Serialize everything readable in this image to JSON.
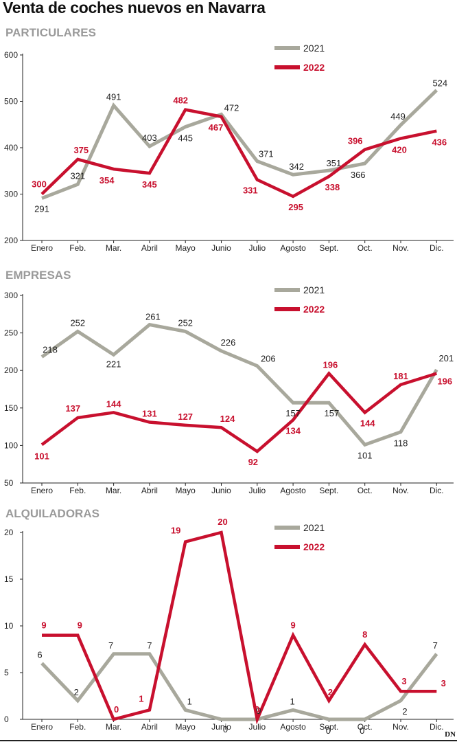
{
  "title": "Venta de coches nuevos en Navarra",
  "logo": "DN",
  "colors": {
    "y2021": "#a8a89c",
    "y2022": "#c8102e",
    "axis": "#222222"
  },
  "chart_data": [
    {
      "type": "line",
      "title": "PARTICULARES",
      "categories": [
        "Enero",
        "Feb.",
        "Mar.",
        "Abril",
        "Mayo",
        "Junio",
        "Julio",
        "Agosto",
        "Sept.",
        "Oct.",
        "Nov.",
        "Dic."
      ],
      "ylim": [
        200,
        600
      ],
      "yticks": [
        200,
        300,
        400,
        500,
        600
      ],
      "grid": false,
      "legend": "top-right",
      "series": [
        {
          "name": "2021",
          "values": [
            291,
            321,
            491,
            403,
            445,
            472,
            371,
            342,
            351,
            366,
            449,
            524
          ]
        },
        {
          "name": "2022",
          "values": [
            300,
            375,
            354,
            345,
            482,
            467,
            331,
            295,
            338,
            396,
            420,
            436
          ]
        }
      ]
    },
    {
      "type": "line",
      "title": "EMPRESAS",
      "categories": [
        "Enero",
        "Feb.",
        "Mar.",
        "Abril",
        "Mayo",
        "Junio",
        "Julio",
        "Agosto",
        "Sept.",
        "Oct.",
        "Nov.",
        "Dic."
      ],
      "ylim": [
        50,
        300
      ],
      "yticks": [
        50,
        100,
        150,
        200,
        250,
        300
      ],
      "grid": false,
      "legend": "top-right",
      "series": [
        {
          "name": "2021",
          "values": [
            218,
            252,
            221,
            261,
            252,
            226,
            206,
            157,
            157,
            101,
            118,
            201
          ]
        },
        {
          "name": "2022",
          "values": [
            101,
            137,
            144,
            131,
            127,
            124,
            92,
            134,
            196,
            144,
            181,
            196
          ]
        }
      ]
    },
    {
      "type": "line",
      "title": "ALQUILADORAS",
      "categories": [
        "Enero",
        "Feb.",
        "Mar.",
        "Abril",
        "Mayo",
        "Junio",
        "Julio",
        "Agosto",
        "Sept.",
        "Oct.",
        "Nov.",
        "Dic."
      ],
      "ylim": [
        0,
        20
      ],
      "yticks": [
        0,
        5,
        10,
        15,
        20
      ],
      "grid": false,
      "legend": "top-right",
      "series": [
        {
          "name": "2021",
          "values": [
            6,
            2,
            7,
            7,
            1,
            0,
            0,
            1,
            0,
            0,
            2,
            7
          ]
        },
        {
          "name": "2022",
          "values": [
            9,
            9,
            0,
            1,
            19,
            20,
            0,
            9,
            2,
            8,
            3,
            3
          ]
        }
      ]
    }
  ]
}
